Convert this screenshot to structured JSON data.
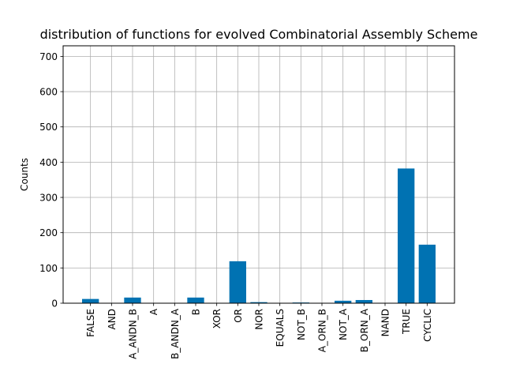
{
  "chart_data": {
    "type": "bar",
    "title": "distribution of functions for evolved Combinatorial Assembly Scheme",
    "xlabel": "",
    "ylabel": "Counts",
    "ylim": [
      0,
      730
    ],
    "yticks": [
      0,
      100,
      200,
      300,
      400,
      500,
      600,
      700
    ],
    "grid": true,
    "bar_color": "#0072b2",
    "categories": [
      "FALSE",
      "AND",
      "A_ANDN_B",
      "A",
      "B_ANDN_A",
      "B",
      "XOR",
      "OR",
      "NOR",
      "EQUALS",
      "NOT_B",
      "A_ORN_B",
      "NOT_A",
      "B_ORN_A",
      "NAND",
      "TRUE",
      "CYCLIC"
    ],
    "values": [
      12,
      0,
      16,
      0,
      0,
      16,
      0,
      119,
      3,
      0,
      2,
      0,
      7,
      9,
      0,
      382,
      166
    ]
  }
}
